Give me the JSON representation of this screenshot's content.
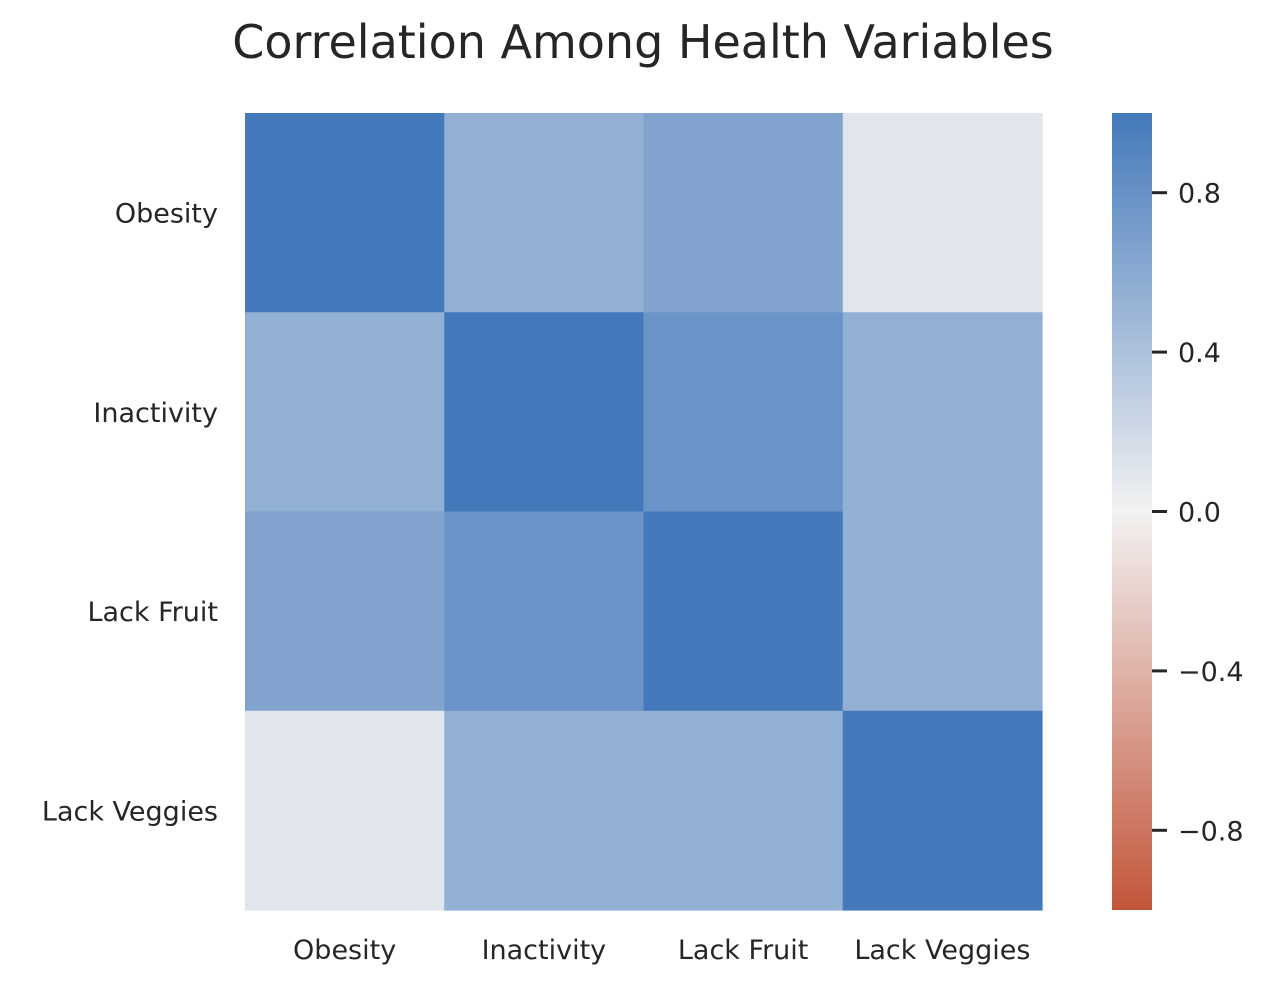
{
  "chart_data": {
    "type": "heatmap",
    "title": "Correlation Among Health Variables",
    "row_labels": [
      "Obesity",
      "Inactivity",
      "Lack Fruit",
      "Lack Veggies"
    ],
    "col_labels": [
      "Obesity",
      "Inactivity",
      "Lack Fruit",
      "Lack Veggies"
    ],
    "values": [
      [
        1.0,
        0.55,
        0.65,
        0.1
      ],
      [
        0.55,
        1.0,
        0.78,
        0.55
      ],
      [
        0.65,
        0.78,
        1.0,
        0.55
      ],
      [
        0.1,
        0.55,
        0.55,
        1.0
      ]
    ],
    "colorbar": {
      "vmin": -1,
      "vmax": 1,
      "ticks": [
        0.8,
        0.4,
        0.0,
        -0.4,
        -0.8
      ],
      "tick_labels": [
        "0.8",
        "0.4",
        "0.0",
        "−0.4",
        "−0.8"
      ],
      "low_color": "#c3553a",
      "mid_color": "#f2f2f2",
      "high_color": "#4479bb"
    },
    "grid": false
  }
}
